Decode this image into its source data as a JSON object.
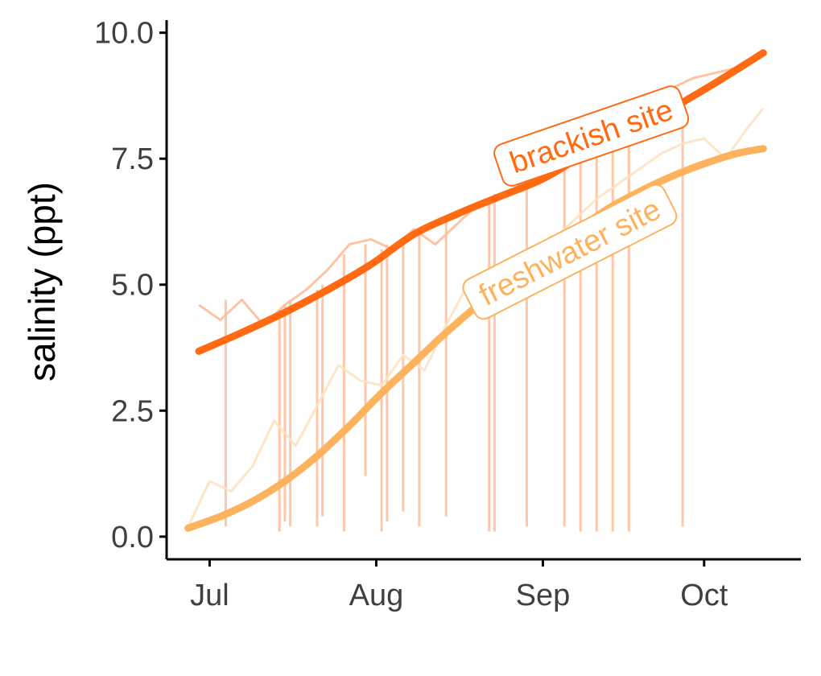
{
  "chart_data": {
    "type": "line",
    "title": "",
    "xlabel": "",
    "ylabel": "salinity (ppt)",
    "ylim": [
      -0.45,
      10.25
    ],
    "xlim": [
      "2021-06-23",
      "2021-10-19"
    ],
    "x_ticks": [
      {
        "date": "2021-07-01",
        "label": "Jul"
      },
      {
        "date": "2021-08-01",
        "label": "Aug"
      },
      {
        "date": "2021-09-01",
        "label": "Sep"
      },
      {
        "date": "2021-10-01",
        "label": "Oct"
      }
    ],
    "y_ticks": [
      {
        "value": 0.0,
        "label": "0.0"
      },
      {
        "value": 2.5,
        "label": "2.5"
      },
      {
        "value": 5.0,
        "label": "5.0"
      },
      {
        "value": 7.5,
        "label": "7.5"
      },
      {
        "value": 10.0,
        "label": "10.0"
      }
    ],
    "grid": false,
    "legend": "none (direct labels on lines)",
    "series": [
      {
        "name": "brackish site",
        "color": "#FF6A13",
        "raw_color": "#FDBE9A",
        "smooth": {
          "x": [
            "2021-06-29",
            "2021-07-07",
            "2021-07-15",
            "2021-07-23",
            "2021-07-31",
            "2021-08-08",
            "2021-08-16",
            "2021-08-24",
            "2021-09-01",
            "2021-09-09",
            "2021-09-17",
            "2021-09-25",
            "2021-10-03",
            "2021-10-12"
          ],
          "y": [
            3.68,
            4.05,
            4.45,
            4.9,
            5.4,
            6.0,
            6.4,
            6.75,
            7.1,
            7.6,
            8.05,
            8.5,
            9.0,
            9.6
          ]
        },
        "raw": {
          "x": [
            "2021-06-29",
            "2021-07-03",
            "2021-07-07",
            "2021-07-11",
            "2021-07-15",
            "2021-07-19",
            "2021-07-23",
            "2021-07-27",
            "2021-07-31",
            "2021-08-04",
            "2021-08-08",
            "2021-08-12",
            "2021-08-16",
            "2021-08-20",
            "2021-08-24",
            "2021-08-28",
            "2021-09-01",
            "2021-09-05",
            "2021-09-09",
            "2021-09-13",
            "2021-09-17",
            "2021-09-21",
            "2021-09-25",
            "2021-09-29",
            "2021-10-03",
            "2021-10-07",
            "2021-10-12"
          ],
          "y": [
            4.6,
            4.3,
            4.7,
            4.2,
            4.6,
            4.9,
            5.3,
            5.8,
            5.9,
            5.7,
            6.1,
            5.8,
            6.2,
            6.6,
            6.7,
            7.0,
            7.3,
            7.6,
            7.8,
            8.0,
            8.3,
            8.6,
            8.9,
            9.1,
            9.2,
            9.3,
            9.6
          ]
        }
      },
      {
        "name": "freshwater site",
        "color": "#FDB35E",
        "raw_color": "#FDE3C2",
        "smooth": {
          "x": [
            "2021-06-27",
            "2021-07-03",
            "2021-07-09",
            "2021-07-15",
            "2021-07-21",
            "2021-07-27",
            "2021-08-02",
            "2021-08-08",
            "2021-08-14",
            "2021-08-20",
            "2021-08-26",
            "2021-09-01",
            "2021-09-07",
            "2021-09-13",
            "2021-09-19",
            "2021-09-25",
            "2021-10-01",
            "2021-10-07",
            "2021-10-12"
          ],
          "y": [
            0.17,
            0.4,
            0.7,
            1.1,
            1.6,
            2.2,
            2.85,
            3.45,
            4.05,
            4.6,
            5.1,
            5.6,
            6.05,
            6.5,
            6.85,
            7.15,
            7.4,
            7.6,
            7.7
          ]
        },
        "raw": {
          "x": [
            "2021-06-27",
            "2021-07-01",
            "2021-07-05",
            "2021-07-09",
            "2021-07-13",
            "2021-07-17",
            "2021-07-21",
            "2021-07-25",
            "2021-07-29",
            "2021-08-02",
            "2021-08-06",
            "2021-08-10",
            "2021-08-14",
            "2021-08-18",
            "2021-08-22",
            "2021-08-26",
            "2021-08-30",
            "2021-09-03",
            "2021-09-07",
            "2021-09-11",
            "2021-09-15",
            "2021-09-19",
            "2021-09-23",
            "2021-09-27",
            "2021-10-01",
            "2021-10-05",
            "2021-10-09",
            "2021-10-12"
          ],
          "y": [
            0.2,
            1.1,
            0.9,
            1.4,
            2.3,
            1.8,
            2.6,
            3.4,
            3.1,
            3.0,
            3.6,
            3.3,
            4.2,
            5.0,
            4.7,
            5.2,
            5.5,
            5.9,
            6.3,
            6.7,
            7.0,
            7.3,
            7.6,
            7.8,
            7.9,
            7.5,
            8.1,
            8.5
          ]
        }
      }
    ],
    "drop_spikes": [
      {
        "x": "2021-07-04",
        "series": 0,
        "from": 4.7,
        "to": 0.2
      },
      {
        "x": "2021-07-14",
        "series": 0,
        "from": 4.5,
        "to": 0.1
      },
      {
        "x": "2021-07-15",
        "series": 0,
        "from": 4.6,
        "to": 0.3
      },
      {
        "x": "2021-07-16",
        "series": 0,
        "from": 4.7,
        "to": 0.2
      },
      {
        "x": "2021-07-21",
        "series": 0,
        "from": 4.9,
        "to": 0.2
      },
      {
        "x": "2021-07-22",
        "series": 0,
        "from": 5.0,
        "to": 0.4
      },
      {
        "x": "2021-07-26",
        "series": 0,
        "from": 5.6,
        "to": 0.1
      },
      {
        "x": "2021-07-30",
        "series": 0,
        "from": 5.8,
        "to": 1.2
      },
      {
        "x": "2021-08-02",
        "series": 0,
        "from": 5.7,
        "to": 0.1
      },
      {
        "x": "2021-08-03",
        "series": 0,
        "from": 5.8,
        "to": 0.3
      },
      {
        "x": "2021-08-06",
        "series": 0,
        "from": 5.9,
        "to": 0.5
      },
      {
        "x": "2021-08-09",
        "series": 0,
        "from": 6.0,
        "to": 0.2
      },
      {
        "x": "2021-08-14",
        "series": 0,
        "from": 6.3,
        "to": 0.4
      },
      {
        "x": "2021-08-22",
        "series": 0,
        "from": 6.7,
        "to": 0.1
      },
      {
        "x": "2021-08-23",
        "series": 0,
        "from": 6.8,
        "to": 0.1
      },
      {
        "x": "2021-08-29",
        "series": 0,
        "from": 7.0,
        "to": 0.2
      },
      {
        "x": "2021-09-05",
        "series": 0,
        "from": 7.3,
        "to": 0.2
      },
      {
        "x": "2021-09-08",
        "series": 0,
        "from": 7.5,
        "to": 0.1
      },
      {
        "x": "2021-09-11",
        "series": 0,
        "from": 7.7,
        "to": 0.1
      },
      {
        "x": "2021-09-14",
        "series": 0,
        "from": 7.9,
        "to": 0.1
      },
      {
        "x": "2021-09-17",
        "series": 0,
        "from": 8.1,
        "to": 0.1
      },
      {
        "x": "2021-09-27",
        "series": 0,
        "from": 8.6,
        "to": 0.2
      }
    ]
  }
}
